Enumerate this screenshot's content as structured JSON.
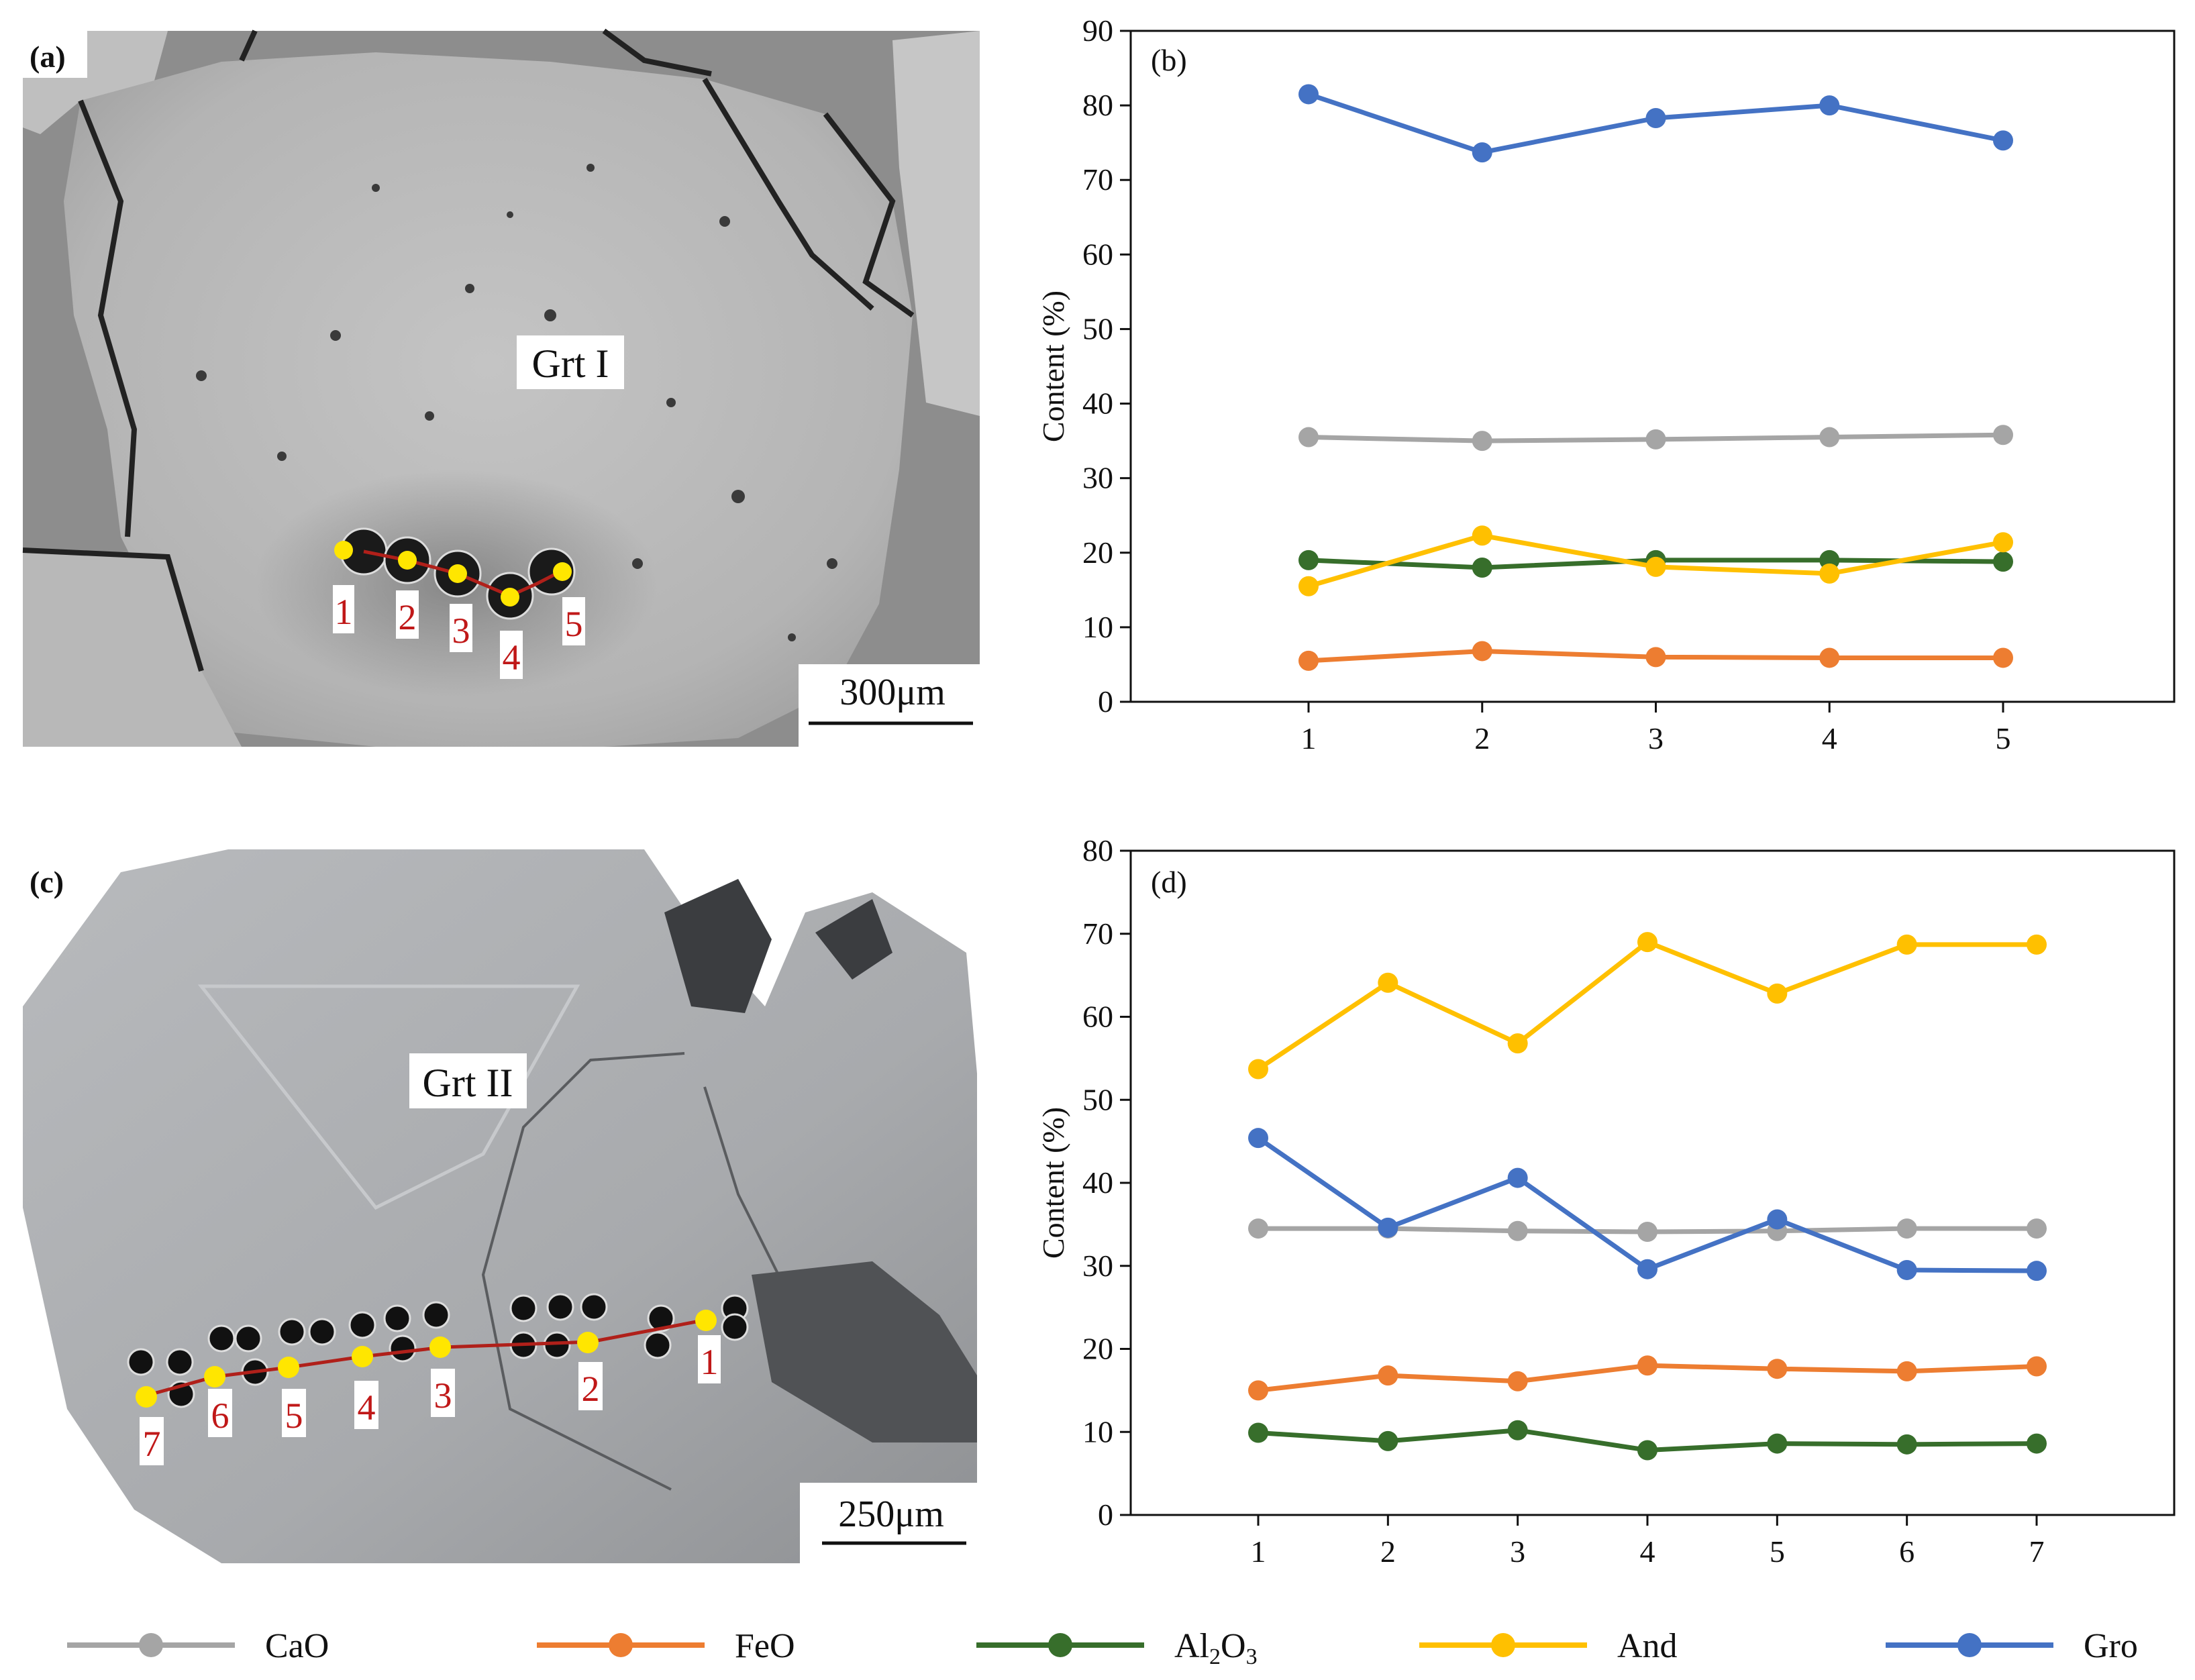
{
  "figure": {
    "panel_a": {
      "label": "(a)",
      "mineral_label": "Grt I",
      "scale_bar": "300μm",
      "point_labels": [
        "1",
        "2",
        "3",
        "4",
        "5"
      ]
    },
    "panel_c": {
      "label": "(c)",
      "mineral_label": "Grt II",
      "scale_bar": "250μm",
      "point_labels": [
        "1",
        "2",
        "3",
        "4",
        "5",
        "6",
        "7"
      ]
    }
  },
  "chart_data": [
    {
      "type": "line",
      "panel": "(b)",
      "title": "",
      "xlabel": "",
      "ylabel": "Content (%)",
      "categories": [
        "1",
        "2",
        "3",
        "4",
        "5"
      ],
      "ylim": [
        0,
        90
      ],
      "yticks": [
        0,
        10,
        20,
        30,
        40,
        50,
        60,
        70,
        80,
        90
      ],
      "series": [
        {
          "name": "CaO",
          "color": "#a5a5a5",
          "values": [
            35.5,
            35.0,
            35.2,
            35.5,
            35.8
          ]
        },
        {
          "name": "FeO",
          "color": "#ed7d31",
          "values": [
            5.5,
            6.8,
            6.0,
            5.9,
            5.9
          ]
        },
        {
          "name": "Al2O3",
          "color": "#376e2b",
          "values": [
            19.0,
            18.0,
            19.0,
            19.0,
            18.8
          ]
        },
        {
          "name": "And",
          "color": "#ffc000",
          "values": [
            15.5,
            22.3,
            18.1,
            17.2,
            21.4
          ]
        },
        {
          "name": "Gro",
          "color": "#4472c4",
          "values": [
            81.5,
            73.7,
            78.3,
            80.0,
            75.3
          ]
        }
      ]
    },
    {
      "type": "line",
      "panel": "(d)",
      "title": "",
      "xlabel": "",
      "ylabel": "Content (%)",
      "categories": [
        "1",
        "2",
        "3",
        "4",
        "5",
        "6",
        "7"
      ],
      "ylim": [
        0,
        80
      ],
      "yticks": [
        0,
        10,
        20,
        30,
        40,
        50,
        60,
        70,
        80
      ],
      "series": [
        {
          "name": "CaO",
          "color": "#a5a5a5",
          "values": [
            34.5,
            34.5,
            34.2,
            34.1,
            34.2,
            34.5,
            34.5
          ]
        },
        {
          "name": "FeO",
          "color": "#ed7d31",
          "values": [
            15.0,
            16.8,
            16.1,
            18.0,
            17.6,
            17.3,
            17.9
          ]
        },
        {
          "name": "Al2O3",
          "color": "#376e2b",
          "values": [
            9.9,
            8.9,
            10.2,
            7.8,
            8.6,
            8.5,
            8.6
          ]
        },
        {
          "name": "And",
          "color": "#ffc000",
          "values": [
            53.7,
            64.1,
            56.8,
            69.0,
            62.8,
            68.7,
            68.7
          ]
        },
        {
          "name": "Gro",
          "color": "#4472c4",
          "values": [
            45.4,
            34.6,
            40.6,
            29.6,
            35.6,
            29.5,
            29.4
          ]
        }
      ]
    }
  ],
  "legend": {
    "items": [
      {
        "name": "CaO",
        "color": "#a5a5a5"
      },
      {
        "name": "FeO",
        "color": "#ed7d31"
      },
      {
        "name": "Al2O3",
        "color": "#376e2b",
        "display_main": "Al",
        "sub1": "2",
        "mid": "O",
        "sub2": "3"
      },
      {
        "name": "And",
        "color": "#ffc000"
      },
      {
        "name": "Gro",
        "color": "#4472c4"
      }
    ]
  }
}
